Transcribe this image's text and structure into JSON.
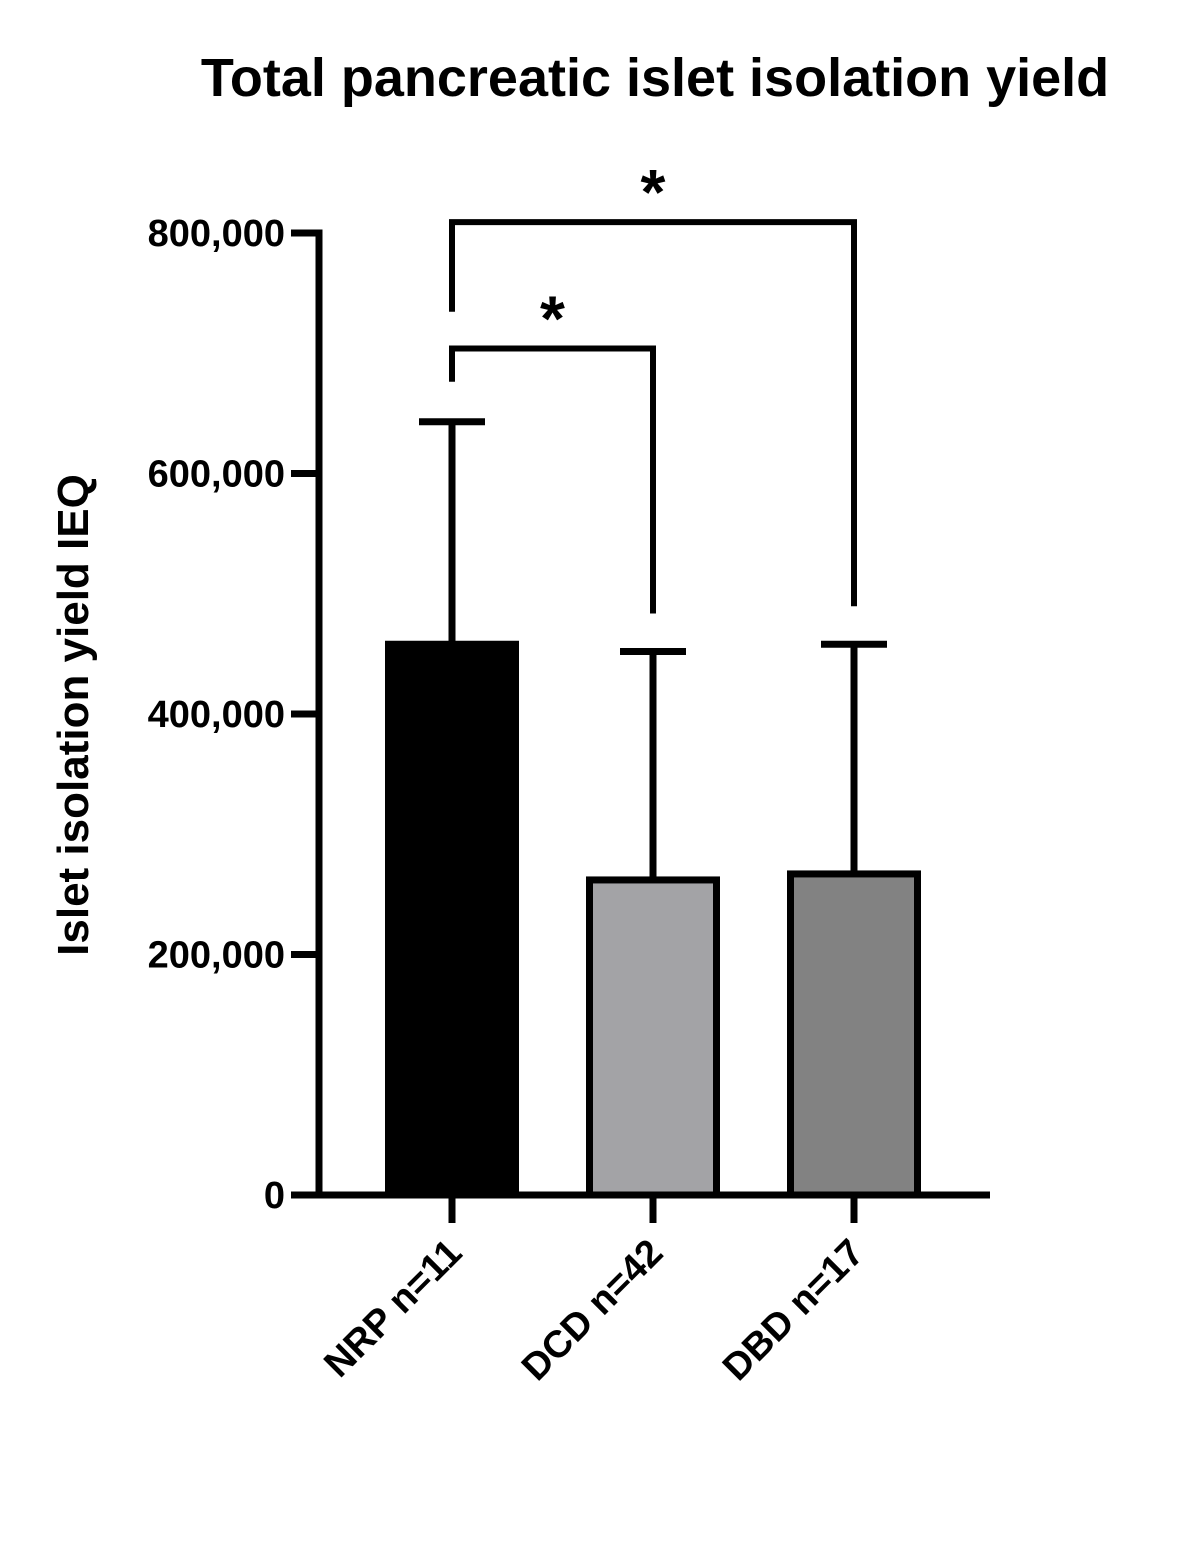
{
  "chart_data": {
    "type": "bar",
    "title": "Total pancreatic islet isolation yield",
    "ylabel": "Islet isolation yield IEQ",
    "xlabel": "",
    "ylim": [
      0,
      800000
    ],
    "yticks": [
      0,
      200000,
      400000,
      600000,
      800000
    ],
    "ytick_labels": [
      "0",
      "200,000",
      "400,000",
      "600,000",
      "800,000"
    ],
    "categories": [
      "NRP n=11",
      "DCD n=42",
      "DBD n=17"
    ],
    "values": [
      458000,
      262000,
      267000
    ],
    "error_upper": [
      643000,
      452000,
      458000
    ],
    "bar_colors": [
      "#000000",
      "#a3a3a6",
      "#828282"
    ],
    "edge_color": "#000000",
    "significance": [
      {
        "from": 0,
        "to": 1,
        "label": "*",
        "bracket_y": 704000
      },
      {
        "from": 0,
        "to": 2,
        "label": "*",
        "bracket_y": 809000
      }
    ],
    "grid": false,
    "legend": "none"
  }
}
